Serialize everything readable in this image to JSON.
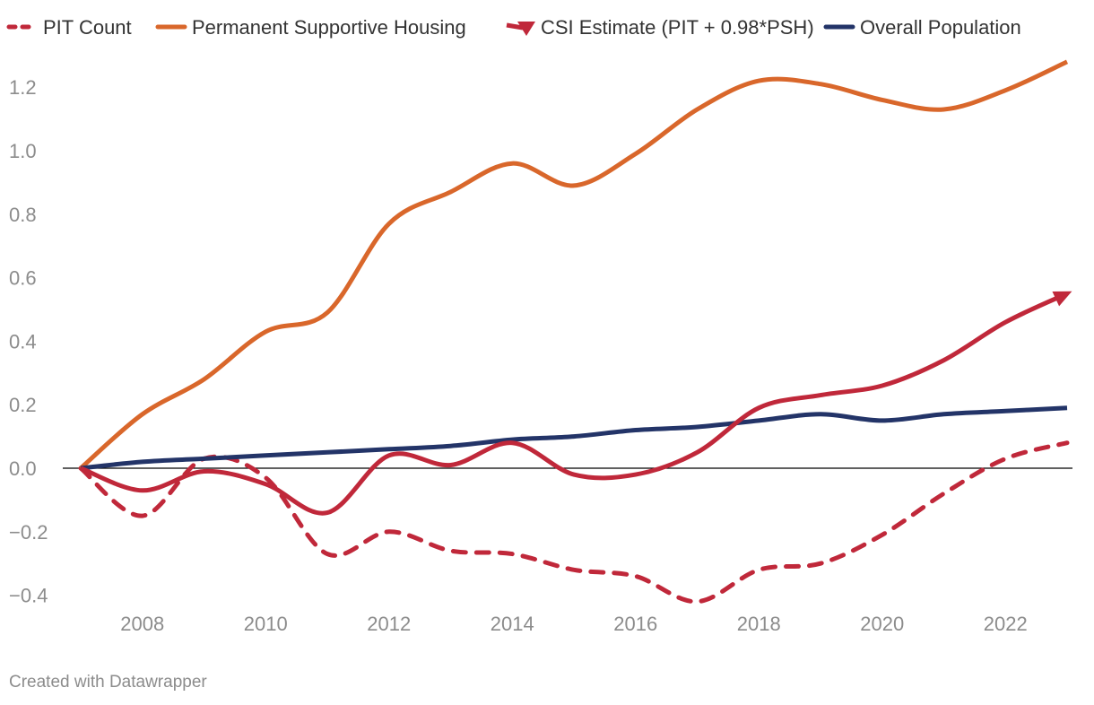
{
  "chart_data": {
    "type": "line",
    "title": "",
    "xlabel": "",
    "ylabel": "",
    "x": [
      2007,
      2008,
      2009,
      2010,
      2011,
      2012,
      2013,
      2014,
      2015,
      2016,
      2017,
      2018,
      2019,
      2020,
      2021,
      2022,
      2023
    ],
    "xlim": [
      2007,
      2023
    ],
    "ylim": [
      -0.45,
      1.32
    ],
    "x_ticks": [
      2008,
      2010,
      2012,
      2014,
      2016,
      2018,
      2020,
      2022
    ],
    "x_tick_labels": [
      "2008",
      "2010",
      "2012",
      "2014",
      "2016",
      "2018",
      "2020",
      "2022"
    ],
    "y_ticks": [
      -0.4,
      -0.2,
      0.0,
      0.2,
      0.4,
      0.6,
      0.8,
      1.0,
      1.2
    ],
    "y_tick_labels": [
      "−0.4",
      "−0.2",
      "0.0",
      "0.2",
      "0.4",
      "0.6",
      "0.8",
      "1.0",
      "1.2"
    ],
    "grid": false,
    "legend_position": "top",
    "series": [
      {
        "name": "PIT Count",
        "color": "#c0283a",
        "style": "dashed",
        "values": [
          0.0,
          -0.15,
          0.03,
          -0.03,
          -0.27,
          -0.2,
          -0.26,
          -0.27,
          -0.32,
          -0.34,
          -0.42,
          -0.32,
          -0.3,
          -0.21,
          -0.08,
          0.03,
          0.08
        ]
      },
      {
        "name": "Permanent Supportive Housing",
        "color": "#d9672b",
        "style": "solid",
        "values": [
          0.0,
          0.17,
          0.28,
          0.43,
          0.49,
          0.77,
          0.87,
          0.96,
          0.89,
          0.99,
          1.13,
          1.22,
          1.21,
          1.16,
          1.13,
          1.19,
          1.28
        ]
      },
      {
        "name": "CSI Estimate (PIT + 0.98*PSH)",
        "color": "#c0283a",
        "style": "solid-arrow",
        "values": [
          0.0,
          -0.07,
          -0.01,
          -0.05,
          -0.14,
          0.04,
          0.01,
          0.08,
          -0.02,
          -0.02,
          0.05,
          0.19,
          0.23,
          0.26,
          0.34,
          0.46,
          0.55
        ]
      },
      {
        "name": "Overall Population",
        "color": "#233468",
        "style": "solid",
        "values": [
          0.0,
          0.02,
          0.03,
          0.04,
          0.05,
          0.06,
          0.07,
          0.09,
          0.1,
          0.12,
          0.13,
          0.15,
          0.17,
          0.15,
          0.17,
          0.18,
          0.19
        ]
      }
    ],
    "credit": "Created with Datawrapper"
  }
}
